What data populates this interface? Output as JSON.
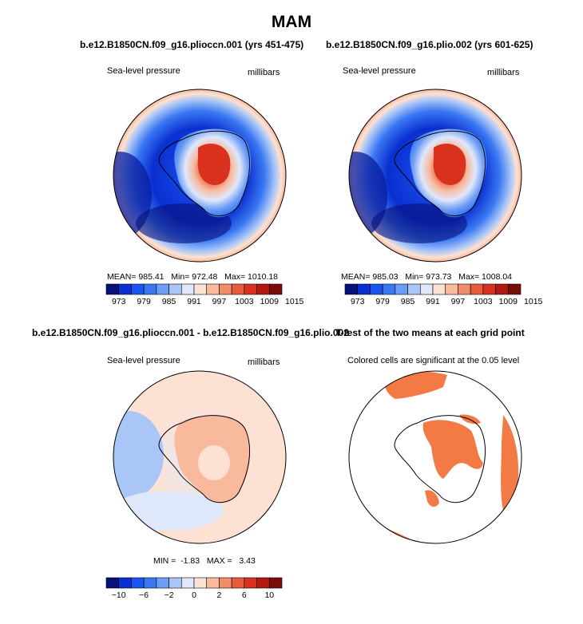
{
  "figure_title": "MAM",
  "colors": {
    "slp_scale": [
      "#08107a",
      "#0a2fd1",
      "#1a55ef",
      "#3a78f2",
      "#6c9cf4",
      "#a9c6f7",
      "#dfe8fb",
      "#fde2d3",
      "#f8b99d",
      "#f28d6c",
      "#e85c3e",
      "#d8321f",
      "#b01a12",
      "#7a0c0a"
    ],
    "diff_scale": [
      "#08107a",
      "#0a2fd1",
      "#1a55ef",
      "#3a78f2",
      "#6c9cf4",
      "#a9c6f7",
      "#dfe8fb",
      "#fde2d3",
      "#f8b99d",
      "#f28d6c",
      "#e85c3e",
      "#d8321f",
      "#b01a12",
      "#7a0c0a"
    ],
    "significance": "#f47a45"
  },
  "chart_data": [
    {
      "type": "heatmap",
      "title": "b.e12.B1850CN.f09_g16.plioccn.001 (yrs 451-475)",
      "left_label": "Sea-level pressure",
      "right_label": "millibars",
      "stats": {
        "mean": "985.41",
        "min": "972.48",
        "max": "1010.18"
      },
      "colorbar_ticks": [
        "973",
        "979",
        "985",
        "991",
        "997",
        "1003",
        "1009",
        "1015"
      ]
    },
    {
      "type": "heatmap",
      "title": "b.e12.B1850CN.f09_g16.plio.002 (yrs 601-625)",
      "left_label": "Sea-level pressure",
      "right_label": "millibars",
      "stats": {
        "mean": "985.03",
        "min": "973.73",
        "max": "1008.04"
      },
      "colorbar_ticks": [
        "973",
        "979",
        "985",
        "991",
        "997",
        "1003",
        "1009",
        "1015"
      ]
    },
    {
      "type": "heatmap",
      "title": "b.e12.B1850CN.f09_g16.plioccn.001 - b.e12.B1850CN.f09_g16.plio.002",
      "left_label": "Sea-level pressure",
      "right_label": "millibars",
      "stats": {
        "min": "-1.83",
        "max": "3.43"
      },
      "colorbar_ticks": [
        "−10",
        "−6",
        "−2",
        "0",
        "2",
        "6",
        "10"
      ]
    },
    {
      "type": "heatmap",
      "title": "T-test of the two means at each grid point",
      "left_label": "Colored cells are significant at the 0.05 level"
    }
  ],
  "stat_labels": {
    "mean": "MEAN=",
    "min": "Min=",
    "max": "Max=",
    "min_caps": "MIN =",
    "max_caps": "MAX ="
  }
}
